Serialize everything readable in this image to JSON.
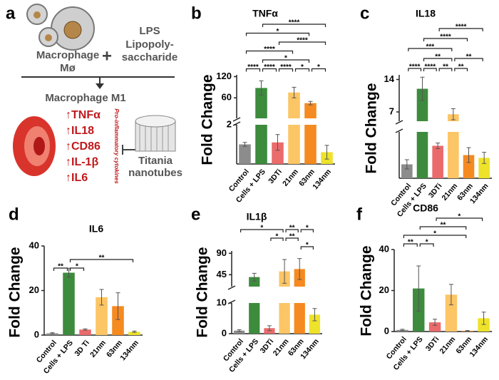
{
  "diagram": {
    "panel": "a",
    "macrophage": "Macrophage",
    "macrophage_symbol": "Mø",
    "plus": "+",
    "lps": "LPS",
    "lps_name_1": "Lipopoly-",
    "lps_name_2": "saccharide",
    "m1": "Macrophage M1",
    "cytokines": [
      "↑TNFα",
      "↑IL18",
      "↑CD86",
      "↑IL-1β",
      "↑IL6"
    ],
    "cytokines_label": "Pro-inflammatory cytokines",
    "nanotubes_1": "Titania",
    "nanotubes_2": "nanotubes"
  },
  "chart_data": [
    {
      "type": "bar",
      "panel": "b",
      "title": "TNFα",
      "y_label": "Fold Change",
      "categories": [
        "Control",
        "Cells + LPS",
        "3DTi",
        "21nm",
        "63nm",
        "134nm"
      ],
      "values": [
        1.0,
        88,
        1.1,
        75,
        45,
        0.6
      ],
      "errors": [
        0.1,
        20,
        0.4,
        15,
        5,
        0.35
      ],
      "colors": [
        "#8c8c8c",
        "#3d8b3d",
        "#ea6b6b",
        "#fcc565",
        "#f58a20",
        "#eee22a"
      ],
      "segments": [
        {
          "ylim": [
            0,
            2
          ],
          "yticks": [
            2
          ]
        },
        {
          "ylim": [
            2,
            125
          ],
          "yticks": [
            60,
            120
          ]
        }
      ],
      "significance": [
        [
          {
            "from": 1,
            "to": 5,
            "label": "****"
          }
        ],
        [
          {
            "from": 0,
            "to": 4,
            "label": "*"
          }
        ],
        [
          {
            "from": 2,
            "to": 5,
            "label": "****"
          }
        ],
        [
          {
            "from": 0,
            "to": 3,
            "label": "****"
          }
        ],
        [
          {
            "from": 1,
            "to": 4,
            "label": "*"
          }
        ],
        [
          {
            "from": 0,
            "to": 1,
            "label": "****"
          },
          {
            "from": 1,
            "to": 2,
            "label": "****"
          },
          {
            "from": 2,
            "to": 3,
            "label": "****"
          },
          {
            "from": 3,
            "to": 4,
            "label": "*"
          },
          {
            "from": 4,
            "to": 5,
            "label": "*"
          }
        ]
      ]
    },
    {
      "type": "bar",
      "panel": "c",
      "title": "IL18",
      "y_label": "Fold Change",
      "categories": [
        "Control",
        "Cells + LPS",
        "3DTi",
        "21nm",
        "63nm",
        "134nm"
      ],
      "values": [
        1.5,
        12,
        3.5,
        6.5,
        2.5,
        2.2
      ],
      "errors": [
        0.5,
        2.5,
        0.3,
        1.2,
        0.8,
        0.6
      ],
      "colors": [
        "#8c8c8c",
        "#3d8b3d",
        "#ea6b6b",
        "#fcc565",
        "#f58a20",
        "#eee22a"
      ],
      "segments": [
        {
          "ylim": [
            0,
            5
          ],
          "yticks": []
        },
        {
          "ylim": [
            5,
            15
          ],
          "yticks": [
            7,
            14
          ]
        }
      ],
      "significance": [
        [
          {
            "from": 2,
            "to": 5,
            "label": "****"
          }
        ],
        [
          {
            "from": 1,
            "to": 4,
            "label": "****"
          }
        ],
        [
          {
            "from": 0,
            "to": 3,
            "label": "***"
          }
        ],
        [
          {
            "from": 1,
            "to": 3,
            "label": "**"
          },
          {
            "from": 3,
            "to": 5,
            "label": "**"
          }
        ],
        [
          {
            "from": 0,
            "to": 1,
            "label": "****"
          },
          {
            "from": 1,
            "to": 2,
            "label": "****"
          },
          {
            "from": 2,
            "to": 3,
            "label": "**"
          },
          {
            "from": 3,
            "to": 4,
            "label": "**"
          }
        ]
      ]
    },
    {
      "type": "bar",
      "panel": "d",
      "title": "IL6",
      "y_label": "Fold Change",
      "categories": [
        "Control",
        "Cells + LPS",
        "3D Ti",
        "21nm",
        "63nm",
        "134nm"
      ],
      "values": [
        0.8,
        28,
        2.5,
        17,
        13,
        1.5
      ],
      "errors": [
        0.3,
        2,
        0.3,
        3.5,
        6,
        0.3
      ],
      "colors": [
        "#8c8c8c",
        "#3d8b3d",
        "#ea6b6b",
        "#fcc565",
        "#f58a20",
        "#eee22a"
      ],
      "segments": [
        {
          "ylim": [
            0,
            40
          ],
          "yticks": [
            0,
            20,
            40
          ]
        }
      ],
      "significance": [
        [
          {
            "from": 1,
            "to": 5,
            "label": "**"
          }
        ],
        [
          {
            "from": 0,
            "to": 1,
            "label": "**"
          },
          {
            "from": 1,
            "to": 2,
            "label": "*"
          }
        ]
      ]
    },
    {
      "type": "bar",
      "panel": "e",
      "title": "IL1β",
      "y_label": "Fold Change",
      "categories": [
        "Control",
        "Cells + LPS",
        "3DTi",
        "21nm",
        "63nm",
        "134nm"
      ],
      "values": [
        1.0,
        40,
        1.8,
        52,
        57,
        6.2
      ],
      "errors": [
        0.3,
        8,
        0.8,
        25,
        22,
        2
      ],
      "colors": [
        "#8c8c8c",
        "#3d8b3d",
        "#ea6b6b",
        "#fcc565",
        "#f58a20",
        "#eee22a"
      ],
      "segments": [
        {
          "ylim": [
            0,
            10
          ],
          "yticks": [
            0,
            10
          ]
        },
        {
          "ylim": [
            20,
            95
          ],
          "yticks": [
            45,
            90
          ]
        }
      ],
      "significance": [
        [
          {
            "from": 0,
            "to": 3,
            "label": "*"
          },
          {
            "from": 3,
            "to": 4,
            "label": "**"
          },
          {
            "from": 4,
            "to": 5,
            "label": "*"
          }
        ],
        [
          {
            "from": 2,
            "to": 3,
            "label": "*"
          },
          {
            "from": 3,
            "to": 4,
            "label": "**"
          }
        ],
        [
          {
            "from": 4,
            "to": 5,
            "label": "*"
          }
        ]
      ]
    },
    {
      "type": "bar",
      "panel": "f",
      "title": "CD86",
      "y_label": "Fold Change",
      "categories": [
        "Control",
        "Cells + LPS",
        "3DTi",
        "21nm",
        "63nm",
        "134nm"
      ],
      "values": [
        0.8,
        21,
        4.5,
        18,
        0.3,
        6.5
      ],
      "errors": [
        0.3,
        11,
        1.5,
        5,
        0.2,
        3
      ],
      "colors": [
        "#8c8c8c",
        "#3d8b3d",
        "#ea6b6b",
        "#fcc565",
        "#f58a20",
        "#eee22a"
      ],
      "segments": [
        {
          "ylim": [
            0,
            40
          ],
          "yticks": [
            0,
            20,
            40
          ]
        }
      ],
      "significance": [
        [
          {
            "from": 2,
            "to": 5,
            "label": "*"
          }
        ],
        [
          {
            "from": 1,
            "to": 4,
            "label": "**"
          }
        ],
        [
          {
            "from": 0,
            "to": 4,
            "label": "*"
          }
        ],
        [
          {
            "from": 0,
            "to": 1,
            "label": "**"
          },
          {
            "from": 1,
            "to": 2,
            "label": "*"
          }
        ]
      ]
    }
  ]
}
